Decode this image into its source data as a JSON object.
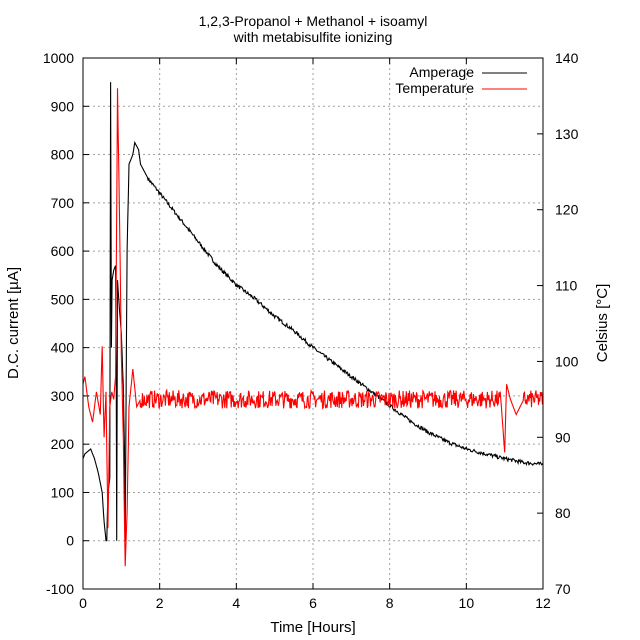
{
  "chart_data": {
    "type": "line",
    "title": "1,2,3-Propanol + Methanol + isoamyl",
    "subtitle": "with metabisulfite ionizing",
    "xlabel": "Time [Hours]",
    "ylabel": "D.C. current [µA]",
    "y2label": "Celsius [°C]",
    "xlim": [
      0,
      12
    ],
    "ylim": [
      -100,
      1000
    ],
    "y2lim": [
      70,
      140
    ],
    "xticks": [
      0,
      2,
      4,
      6,
      8,
      10,
      12
    ],
    "yticks": [
      -100,
      0,
      100,
      200,
      300,
      400,
      500,
      600,
      700,
      800,
      900,
      1000
    ],
    "y2ticks": [
      70,
      80,
      90,
      100,
      110,
      120,
      130,
      140
    ],
    "grid": true,
    "legend_position": "top-right",
    "series": [
      {
        "name": "Amperage",
        "axis": "left",
        "color": "#000000",
        "noise": 4,
        "x": [
          0,
          0.05,
          0.2,
          0.3,
          0.4,
          0.5,
          0.55,
          0.6,
          0.62,
          0.65,
          0.7,
          0.72,
          0.74,
          0.76,
          0.8,
          0.85,
          0.87,
          0.88,
          0.9,
          0.95,
          1.0,
          1.05,
          1.08,
          1.1,
          1.15,
          1.2,
          1.25,
          1.3,
          1.35,
          1.45,
          1.5,
          1.7,
          2.0,
          2.5,
          3.0,
          3.5,
          4.0,
          4.5,
          5.0,
          5.5,
          6.0,
          6.5,
          7.0,
          7.5,
          8.0,
          8.5,
          9.0,
          9.5,
          10.0,
          10.5,
          11.0,
          11.5,
          12.0
        ],
        "y": [
          170,
          180,
          190,
          170,
          140,
          100,
          40,
          0,
          0,
          100,
          130,
          950,
          400,
          540,
          560,
          570,
          300,
          0,
          540,
          480,
          430,
          320,
          200,
          0,
          600,
          780,
          790,
          800,
          825,
          810,
          780,
          750,
          720,
          670,
          620,
          570,
          530,
          500,
          465,
          435,
          400,
          370,
          340,
          310,
          280,
          250,
          225,
          205,
          190,
          180,
          170,
          162,
          158
        ]
      },
      {
        "name": "Temperature",
        "axis": "right",
        "color": "#ff0000",
        "noise": 1.2,
        "x": [
          0,
          0.05,
          0.15,
          0.25,
          0.35,
          0.45,
          0.5,
          0.55,
          0.6,
          0.65,
          0.7,
          0.75,
          0.8,
          0.85,
          0.9,
          0.95,
          1.0,
          1.05,
          1.1,
          1.15,
          1.2,
          1.3,
          1.4,
          1.5,
          2,
          3,
          4,
          5,
          6,
          7,
          8,
          9,
          10,
          10.9,
          11.0,
          11.05,
          11.15,
          11.3,
          11.5,
          12
        ],
        "y": [
          97,
          98,
          94,
          92,
          96,
          93,
          102,
          90,
          96,
          78,
          94,
          96,
          95,
          98,
          136,
          120,
          101,
          90,
          73,
          80,
          94,
          99,
          94,
          95,
          95,
          95,
          95,
          95,
          95,
          95,
          95,
          95,
          95,
          95,
          88,
          97,
          95,
          93,
          95,
          95
        ]
      }
    ]
  }
}
